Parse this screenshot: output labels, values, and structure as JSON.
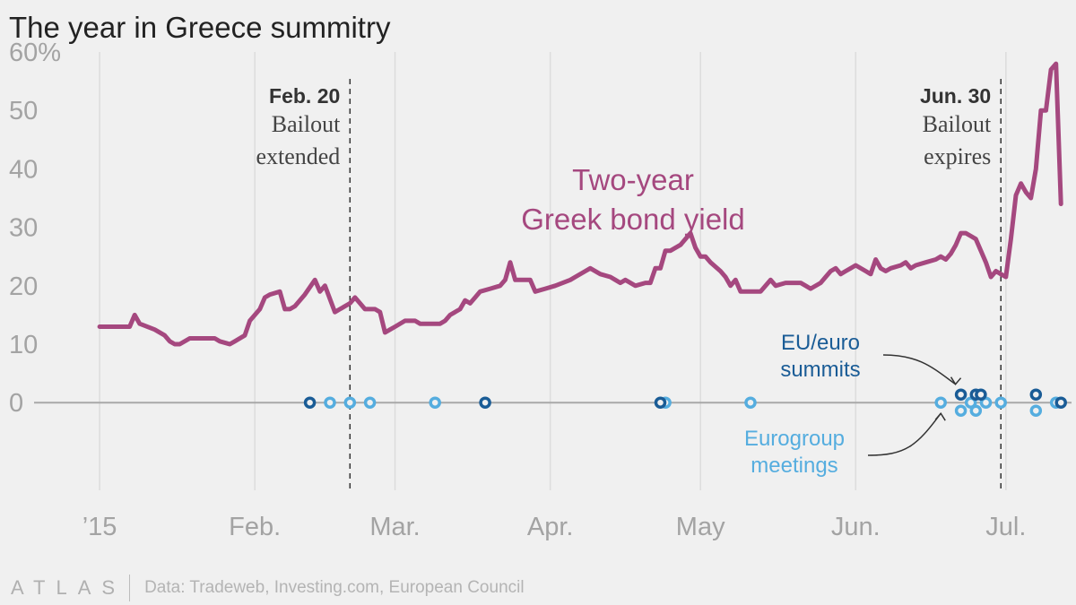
{
  "chart_data": {
    "type": "line",
    "title": "The year in Greece summitry",
    "source": "Data: Tradeweb, Investing.com, European Council",
    "brand": "ATLAS",
    "x_axis": {
      "type": "date",
      "range": [
        "2014-12-25",
        "2015-07-15"
      ],
      "ticks": [
        {
          "date": "2015-01-01",
          "label": "’15"
        },
        {
          "date": "2015-02-01",
          "label": "Feb."
        },
        {
          "date": "2015-03-01",
          "label": "Mar."
        },
        {
          "date": "2015-04-01",
          "label": "Apr."
        },
        {
          "date": "2015-05-01",
          "label": "May"
        },
        {
          "date": "2015-06-01",
          "label": "Jun."
        },
        {
          "date": "2015-07-01",
          "label": "Jul."
        }
      ]
    },
    "y_axis": {
      "range": [
        -15,
        62
      ],
      "ticks": [
        {
          "value": 0,
          "label": "0"
        },
        {
          "value": 10,
          "label": "10"
        },
        {
          "value": 20,
          "label": "20"
        },
        {
          "value": 30,
          "label": "30"
        },
        {
          "value": 40,
          "label": "40"
        },
        {
          "value": 50,
          "label": "50"
        },
        {
          "value": 60,
          "label": "60%"
        }
      ]
    },
    "grid": {
      "vertical": true,
      "horizontal": false
    },
    "series": [
      {
        "name": "Two-year Greek bond yield",
        "label_lines": [
          "Two-year",
          "Greek bond yield"
        ],
        "color": "#a5487f",
        "points": [
          [
            "2015-01-01",
            13
          ],
          [
            "2015-01-05",
            13
          ],
          [
            "2015-01-07",
            13
          ],
          [
            "2015-01-08",
            15
          ],
          [
            "2015-01-09",
            13.5
          ],
          [
            "2015-01-12",
            12.5
          ],
          [
            "2015-01-14",
            11.5
          ],
          [
            "2015-01-15",
            10.5
          ],
          [
            "2015-01-16",
            10
          ],
          [
            "2015-01-17",
            10
          ],
          [
            "2015-01-19",
            11
          ],
          [
            "2015-01-21",
            11
          ],
          [
            "2015-01-23",
            11
          ],
          [
            "2015-01-24",
            11
          ],
          [
            "2015-01-25",
            10.5
          ],
          [
            "2015-01-27",
            10
          ],
          [
            "2015-01-28",
            10.5
          ],
          [
            "2015-01-30",
            11.5
          ],
          [
            "2015-01-31",
            14
          ],
          [
            "2015-02-02",
            16
          ],
          [
            "2015-02-03",
            18
          ],
          [
            "2015-02-04",
            18.5
          ],
          [
            "2015-02-06",
            19
          ],
          [
            "2015-02-07",
            16
          ],
          [
            "2015-02-08",
            16
          ],
          [
            "2015-02-09",
            16.5
          ],
          [
            "2015-02-11",
            18.5
          ],
          [
            "2015-02-13",
            21
          ],
          [
            "2015-02-14",
            19
          ],
          [
            "2015-02-15",
            20
          ],
          [
            "2015-02-17",
            15.5
          ],
          [
            "2015-02-18",
            16
          ],
          [
            "2015-02-20",
            17
          ],
          [
            "2015-02-21",
            18
          ],
          [
            "2015-02-22",
            17
          ],
          [
            "2015-02-23",
            16
          ],
          [
            "2015-02-25",
            16
          ],
          [
            "2015-02-26",
            15.5
          ],
          [
            "2015-02-27",
            12
          ],
          [
            "2015-02-28",
            12.5
          ],
          [
            "2015-03-01",
            13
          ],
          [
            "2015-03-03",
            14
          ],
          [
            "2015-03-05",
            14
          ],
          [
            "2015-03-06",
            13.5
          ],
          [
            "2015-03-07",
            13.5
          ],
          [
            "2015-03-10",
            13.5
          ],
          [
            "2015-03-11",
            14
          ],
          [
            "2015-03-12",
            15
          ],
          [
            "2015-03-14",
            16
          ],
          [
            "2015-03-15",
            17.5
          ],
          [
            "2015-03-16",
            17
          ],
          [
            "2015-03-17",
            18
          ],
          [
            "2015-03-18",
            19
          ],
          [
            "2015-03-20",
            19.5
          ],
          [
            "2015-03-22",
            20
          ],
          [
            "2015-03-23",
            21
          ],
          [
            "2015-03-24",
            24
          ],
          [
            "2015-03-25",
            21
          ],
          [
            "2015-03-27",
            21
          ],
          [
            "2015-03-28",
            21
          ],
          [
            "2015-03-29",
            19
          ],
          [
            "2015-03-31",
            19.5
          ],
          [
            "2015-04-02",
            20
          ],
          [
            "2015-04-05",
            21
          ],
          [
            "2015-04-06",
            21.5
          ],
          [
            "2015-04-08",
            22.5
          ],
          [
            "2015-04-09",
            23
          ],
          [
            "2015-04-11",
            22
          ],
          [
            "2015-04-13",
            21.5
          ],
          [
            "2015-04-14",
            21
          ],
          [
            "2015-04-15",
            20.5
          ],
          [
            "2015-04-16",
            21
          ],
          [
            "2015-04-18",
            20
          ],
          [
            "2015-04-20",
            20.5
          ],
          [
            "2015-04-21",
            20.5
          ],
          [
            "2015-04-22",
            23
          ],
          [
            "2015-04-23",
            23
          ],
          [
            "2015-04-24",
            26
          ],
          [
            "2015-04-25",
            26
          ],
          [
            "2015-04-27",
            27
          ],
          [
            "2015-04-28",
            28
          ],
          [
            "2015-04-29",
            29
          ],
          [
            "2015-04-30",
            26.5
          ],
          [
            "2015-05-01",
            25
          ],
          [
            "2015-05-02",
            25
          ],
          [
            "2015-05-03",
            24
          ],
          [
            "2015-05-05",
            22.5
          ],
          [
            "2015-05-06",
            21.5
          ],
          [
            "2015-05-07",
            20
          ],
          [
            "2015-05-08",
            21
          ],
          [
            "2015-05-09",
            19
          ],
          [
            "2015-05-10",
            19
          ],
          [
            "2015-05-12",
            19
          ],
          [
            "2015-05-13",
            19
          ],
          [
            "2015-05-15",
            21
          ],
          [
            "2015-05-16",
            20
          ],
          [
            "2015-05-18",
            20.5
          ],
          [
            "2015-05-20",
            20.5
          ],
          [
            "2015-05-21",
            20.5
          ],
          [
            "2015-05-22",
            20
          ],
          [
            "2015-05-23",
            19.5
          ],
          [
            "2015-05-25",
            20.5
          ],
          [
            "2015-05-26",
            21.5
          ],
          [
            "2015-05-27",
            22.5
          ],
          [
            "2015-05-28",
            23
          ],
          [
            "2015-05-29",
            22
          ],
          [
            "2015-05-30",
            22.5
          ],
          [
            "2015-05-31",
            23
          ],
          [
            "2015-06-01",
            23.5
          ],
          [
            "2015-06-03",
            22.5
          ],
          [
            "2015-06-04",
            22
          ],
          [
            "2015-06-05",
            24.5
          ],
          [
            "2015-06-06",
            23
          ],
          [
            "2015-06-07",
            22.5
          ],
          [
            "2015-06-08",
            23
          ],
          [
            "2015-06-10",
            23.5
          ],
          [
            "2015-06-11",
            24
          ],
          [
            "2015-06-12",
            23
          ],
          [
            "2015-06-13",
            23.5
          ],
          [
            "2015-06-15",
            24
          ],
          [
            "2015-06-17",
            24.5
          ],
          [
            "2015-06-18",
            25
          ],
          [
            "2015-06-19",
            24.5
          ],
          [
            "2015-06-20",
            25.5
          ],
          [
            "2015-06-21",
            27
          ],
          [
            "2015-06-22",
            29
          ],
          [
            "2015-06-23",
            29
          ],
          [
            "2015-06-24",
            28.5
          ],
          [
            "2015-06-25",
            28
          ],
          [
            "2015-06-26",
            26
          ],
          [
            "2015-06-27",
            24
          ],
          [
            "2015-06-28",
            21.5
          ],
          [
            "2015-06-29",
            22.5
          ],
          [
            "2015-06-30",
            22
          ],
          [
            "2015-07-01",
            21.5
          ],
          [
            "2015-07-02",
            28
          ],
          [
            "2015-07-03",
            35.5
          ],
          [
            "2015-07-04",
            37.5
          ],
          [
            "2015-07-05",
            36
          ],
          [
            "2015-07-06",
            35
          ],
          [
            "2015-07-07",
            40
          ],
          [
            "2015-07-08",
            50
          ],
          [
            "2015-07-09",
            50
          ],
          [
            "2015-07-10",
            57
          ],
          [
            "2015-07-11",
            58
          ],
          [
            "2015-07-12",
            34
          ]
        ]
      }
    ],
    "event_lines": [
      {
        "date": "2015-02-20",
        "title": "Feb. 20",
        "text": [
          "Bailout",
          "extended"
        ]
      },
      {
        "date": "2015-06-30",
        "title": "Jun. 30",
        "text": [
          "Bailout",
          "expires"
        ]
      }
    ],
    "events": {
      "summits": {
        "label_lines": [
          "EU/euro",
          "summits"
        ],
        "color": "#1a5c96",
        "points": [
          [
            "2015-02-12",
            0
          ],
          [
            "2015-03-19",
            0
          ],
          [
            "2015-04-23",
            0
          ],
          [
            "2015-06-22",
            1
          ],
          [
            "2015-06-25",
            1
          ],
          [
            "2015-06-26",
            1
          ],
          [
            "2015-07-07",
            1
          ],
          [
            "2015-07-12",
            0
          ]
        ]
      },
      "eurogroup": {
        "label_lines": [
          "Eurogroup",
          "meetings"
        ],
        "color": "#55addf",
        "points": [
          [
            "2015-02-16",
            0
          ],
          [
            "2015-02-20",
            0
          ],
          [
            "2015-02-24",
            0
          ],
          [
            "2015-03-09",
            0
          ],
          [
            "2015-04-24",
            0
          ],
          [
            "2015-05-11",
            0
          ],
          [
            "2015-06-18",
            0
          ],
          [
            "2015-06-22",
            -1
          ],
          [
            "2015-06-24",
            0
          ],
          [
            "2015-06-25",
            -1
          ],
          [
            "2015-06-27",
            0
          ],
          [
            "2015-06-30",
            0
          ],
          [
            "2015-07-07",
            -1
          ],
          [
            "2015-07-11",
            0
          ]
        ]
      }
    }
  }
}
